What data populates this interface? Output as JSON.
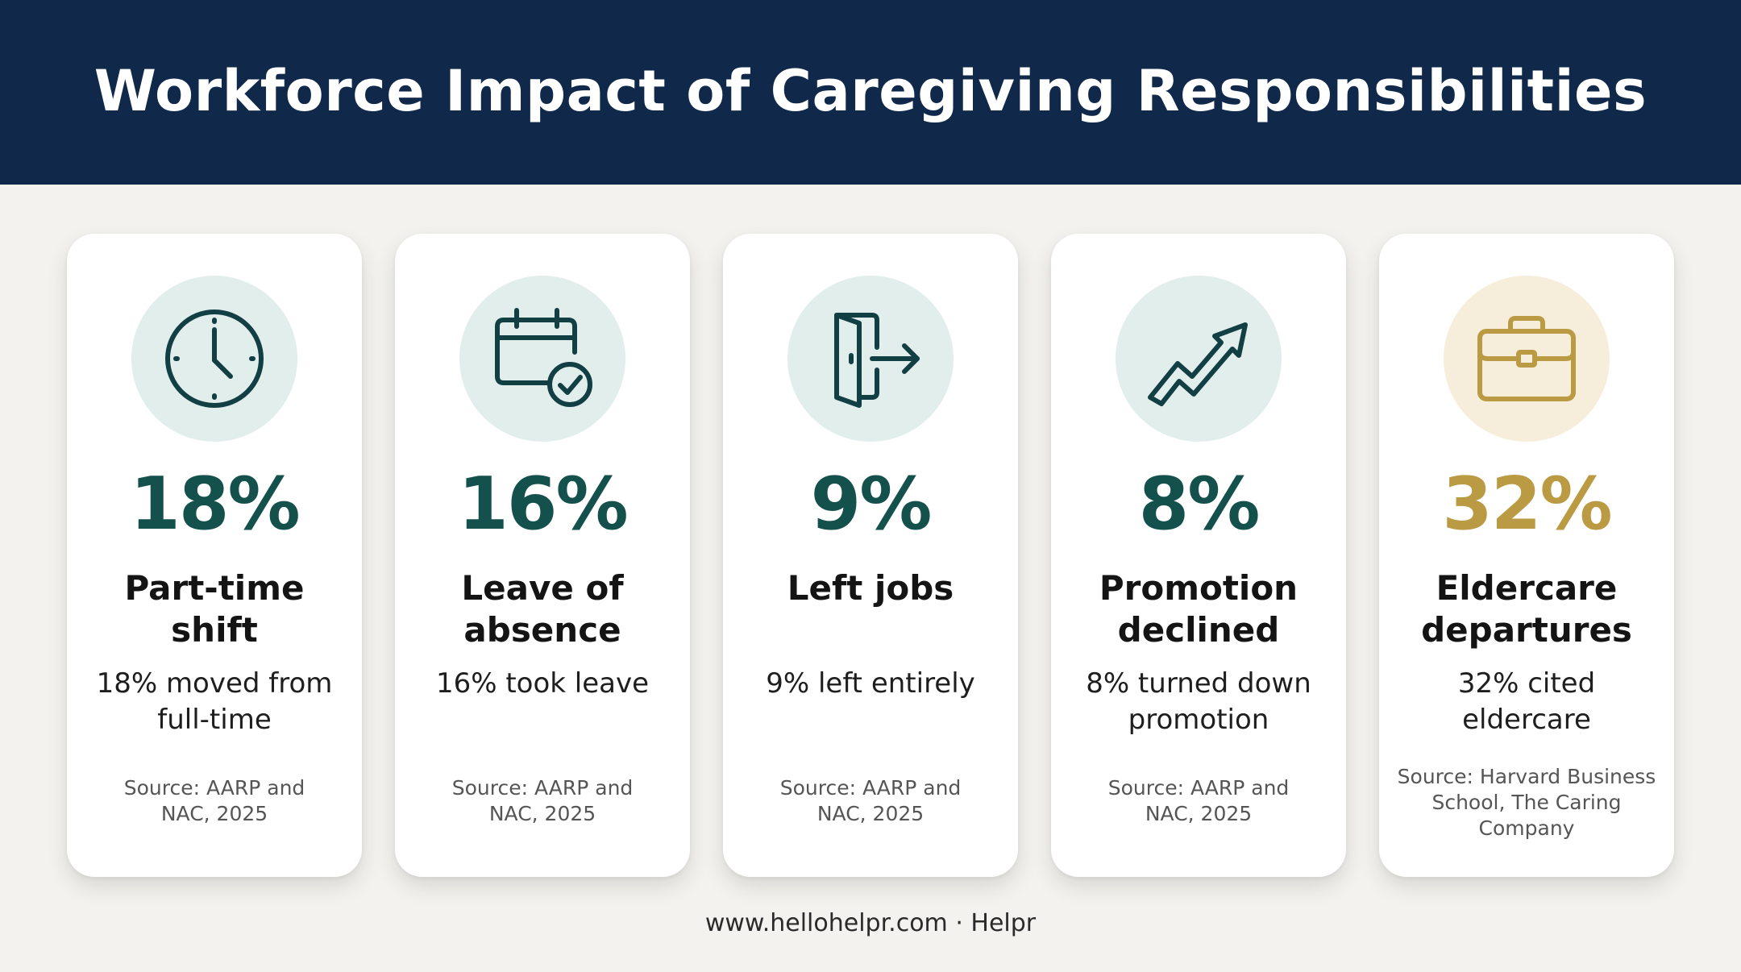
{
  "header": {
    "title": "Workforce Impact of Caregiving Responsibilities"
  },
  "cards": [
    {
      "icon": "clock-icon",
      "stat": "18%",
      "label": "Part-time\nshift",
      "description": "18% moved from\nfull-time",
      "source": "Source: AARP and\nNAC, 2025",
      "accent": "#14514c"
    },
    {
      "icon": "calendar-check-icon",
      "stat": "16%",
      "label": "Leave of\nabsence",
      "description": "16% took leave",
      "source": "Source: AARP and\nNAC, 2025",
      "accent": "#14514c"
    },
    {
      "icon": "door-exit-icon",
      "stat": "9%",
      "label": "Left jobs",
      "description": "9% left entirely",
      "source": "Source: AARP and\nNAC, 2025",
      "accent": "#14514c"
    },
    {
      "icon": "trend-arrow-icon",
      "stat": "8%",
      "label": "Promotion\ndeclined",
      "description": "8% turned down\npromotion",
      "source": "Source: AARP and\nNAC, 2025",
      "accent": "#14514c"
    },
    {
      "icon": "briefcase-icon",
      "stat": "32%",
      "label": "Eldercare\ndepartures",
      "description": "32% cited\neldercare",
      "source": "Source: Harvard Business\nSchool, The Caring\nCompany",
      "accent": "#bb9a44"
    }
  ],
  "footer": {
    "text": "www.hellohelpr.com · Helpr"
  },
  "colors": {
    "header_bg": "#10284a",
    "page_bg": "#f3f2ee",
    "teal": "#14514c",
    "gold": "#bb9a44",
    "icon_circle_teal": "#e2eeec",
    "icon_circle_gold": "#f6eedb"
  }
}
